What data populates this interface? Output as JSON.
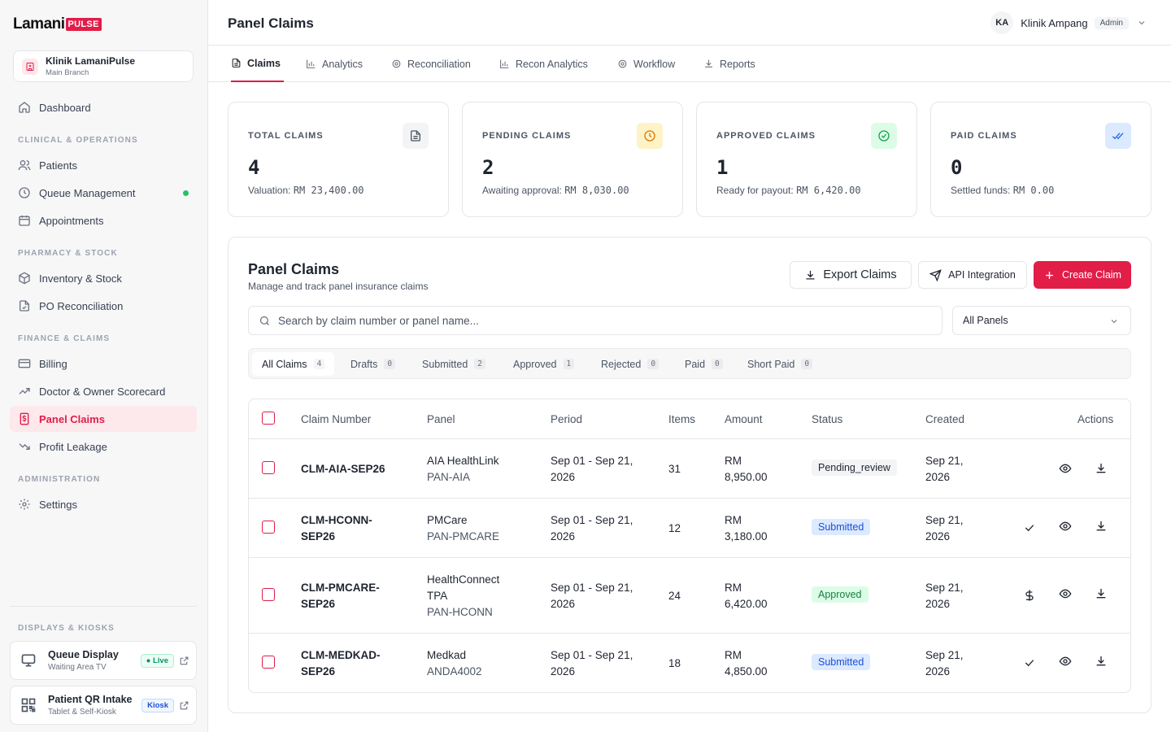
{
  "brand": {
    "name": "Lamani",
    "badge": "PULSE"
  },
  "branch": {
    "name": "Klinik LamaniPulse",
    "sub": "Main Branch"
  },
  "nav": {
    "dashboard": "Dashboard",
    "sec_clinical": "CLINICAL & OPERATIONS",
    "patients": "Patients",
    "queue": "Queue Management",
    "appointments": "Appointments",
    "sec_pharmacy": "PHARMACY & STOCK",
    "inventory": "Inventory & Stock",
    "po": "PO Reconciliation",
    "sec_finance": "FINANCE & CLAIMS",
    "billing": "Billing",
    "scorecard": "Doctor & Owner Scorecard",
    "panel_claims": "Panel Claims",
    "profit": "Profit Leakage",
    "sec_admin": "ADMINISTRATION",
    "settings": "Settings",
    "sec_displays": "DISPLAYS & KIOSKS"
  },
  "kiosks": [
    {
      "title": "Queue Display",
      "sub": "Waiting Area TV",
      "badge": "Live"
    },
    {
      "title": "Patient QR Intake",
      "sub": "Tablet & Self-Kiosk",
      "badge": "Kiosk"
    }
  ],
  "header": {
    "title": "Panel Claims",
    "initials": "KA",
    "user": "Klinik Ampang",
    "role": "Admin"
  },
  "tabs": [
    "Claims",
    "Analytics",
    "Reconciliation",
    "Recon Analytics",
    "Workflow",
    "Reports"
  ],
  "stats": [
    {
      "label": "TOTAL CLAIMS",
      "value": "4",
      "sub_label": "Valuation:",
      "sub_value": "RM 23,400.00"
    },
    {
      "label": "PENDING CLAIMS",
      "value": "2",
      "sub_label": "Awaiting approval:",
      "sub_value": "RM 8,030.00"
    },
    {
      "label": "APPROVED CLAIMS",
      "value": "1",
      "sub_label": "Ready for payout:",
      "sub_value": "RM 6,420.00"
    },
    {
      "label": "PAID CLAIMS",
      "value": "0",
      "sub_label": "Settled funds:",
      "sub_value": "RM 0.00"
    }
  ],
  "panel": {
    "title": "Panel Claims",
    "subtitle": "Manage and track panel insurance claims",
    "export_label": "Export Claims",
    "api_label": "API Integration",
    "create_label": "Create Claim",
    "search_placeholder": "Search by claim number or panel name...",
    "panel_filter": "All Panels"
  },
  "filters": [
    {
      "label": "All Claims",
      "count": "4"
    },
    {
      "label": "Drafts",
      "count": "0"
    },
    {
      "label": "Submitted",
      "count": "2"
    },
    {
      "label": "Approved",
      "count": "1"
    },
    {
      "label": "Rejected",
      "count": "0"
    },
    {
      "label": "Paid",
      "count": "0"
    },
    {
      "label": "Short Paid",
      "count": "0"
    }
  ],
  "table": {
    "columns": [
      "Claim Number",
      "Panel",
      "Period",
      "Items",
      "Amount",
      "Status",
      "Created",
      "Actions"
    ],
    "rows": [
      {
        "claim_a": "CLM-AIA-SEP26",
        "claim_b": "",
        "panel_a": "AIA HealthLink",
        "panel_b": "",
        "code": "PAN-AIA",
        "period_a": "Sep 01 - Sep 21,",
        "period_b": "2026",
        "items": "31",
        "amount_a": "RM",
        "amount_b": "8,950.00",
        "status": "Pending_review",
        "created_a": "Sep 21,",
        "created_b": "2026"
      },
      {
        "claim_a": "CLM-HCONN-",
        "claim_b": "SEP26",
        "panel_a": "PMCare",
        "panel_b": "",
        "code": "PAN-PMCARE",
        "period_a": "Sep 01 - Sep 21,",
        "period_b": "2026",
        "items": "12",
        "amount_a": "RM",
        "amount_b": "3,180.00",
        "status": "Submitted",
        "created_a": "Sep 21,",
        "created_b": "2026"
      },
      {
        "claim_a": "CLM-PMCARE-",
        "claim_b": "SEP26",
        "panel_a": "HealthConnect",
        "panel_b": "TPA",
        "code": "PAN-HCONN",
        "period_a": "Sep 01 - Sep 21,",
        "period_b": "2026",
        "items": "24",
        "amount_a": "RM",
        "amount_b": "6,420.00",
        "status": "Approved",
        "created_a": "Sep 21,",
        "created_b": "2026"
      },
      {
        "claim_a": "CLM-MEDKAD-",
        "claim_b": "SEP26",
        "panel_a": "Medkad",
        "panel_b": "",
        "code": "ANDA4002",
        "period_a": "Sep 01 - Sep 21,",
        "period_b": "2026",
        "items": "18",
        "amount_a": "RM",
        "amount_b": "4,850.00",
        "status": "Submitted",
        "created_a": "Sep 21,",
        "created_b": "2026"
      }
    ]
  },
  "colors": {
    "accent": "#e11d48",
    "submitted": "#1d4ed8",
    "approved": "#15803d",
    "live": "#22c55e"
  }
}
